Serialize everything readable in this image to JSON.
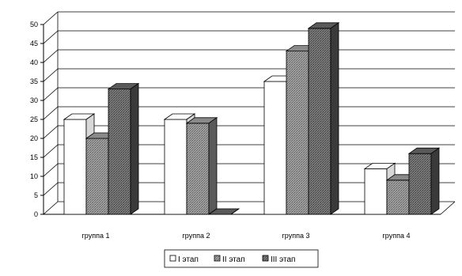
{
  "chart_data": {
    "type": "bar",
    "categories": [
      "группа 1",
      "группа 2",
      "группа 3",
      "группа 4"
    ],
    "series": [
      {
        "name": "I этап",
        "values": [
          25,
          25,
          35,
          12
        ],
        "color": "#ffffff"
      },
      {
        "name": "II этап",
        "values": [
          20,
          24,
          43,
          9
        ],
        "color": "#8c8c8c"
      },
      {
        "name": "III этап",
        "values": [
          33,
          0,
          49,
          16
        ],
        "color": "#6e6e6e"
      }
    ],
    "y_ticks": [
      "0",
      "5",
      "10",
      "15",
      "20",
      "25",
      "30",
      "35",
      "40",
      "45",
      "50"
    ],
    "ylim": [
      0,
      50
    ],
    "grid": true,
    "legend_position": "bottom",
    "three_d": true
  }
}
